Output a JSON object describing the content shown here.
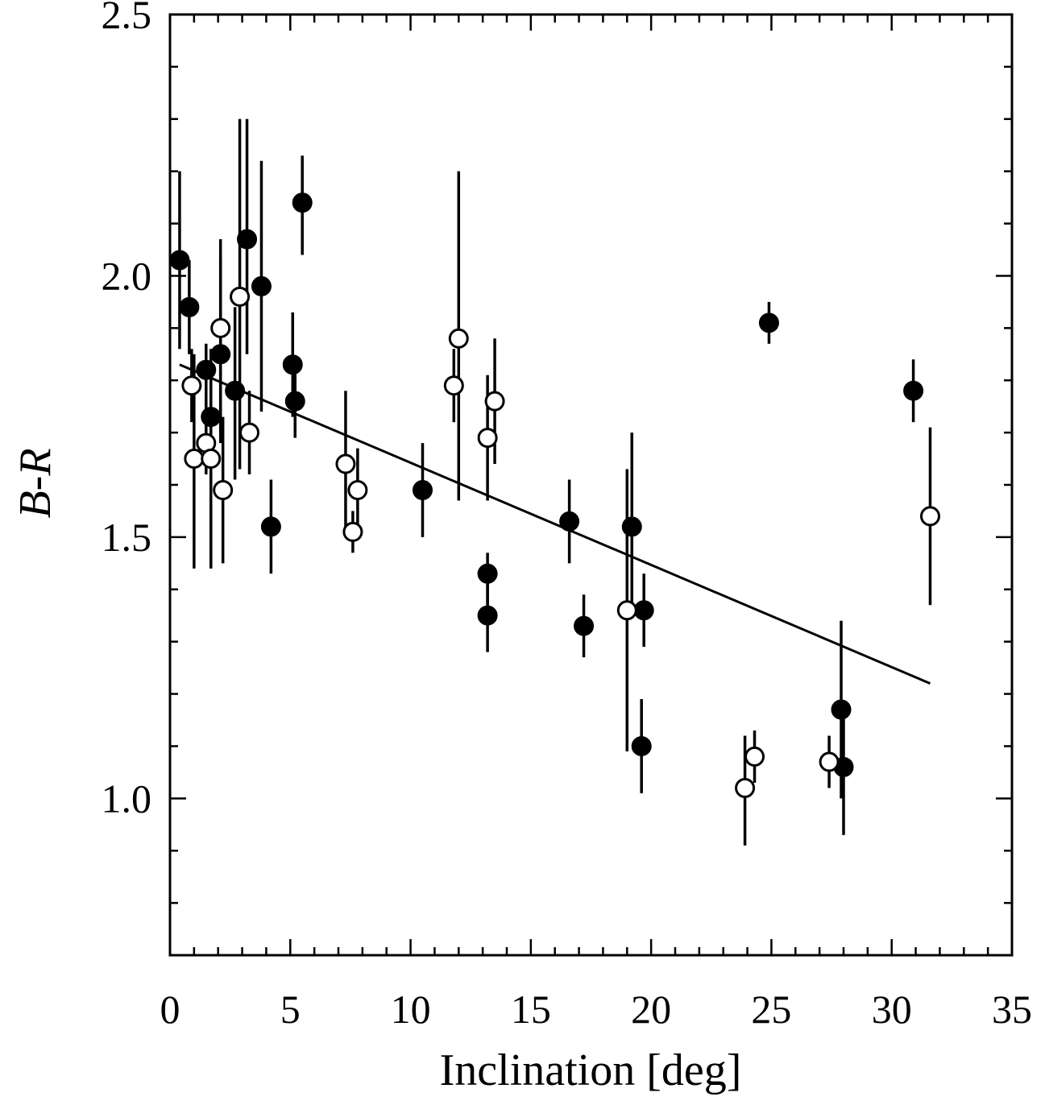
{
  "chart_data": {
    "type": "scatter",
    "xlabel": "Inclination [deg]",
    "ylabel": "B-R",
    "xlim": [
      0,
      35
    ],
    "ylim": [
      0.7,
      2.5
    ],
    "x_ticks": [
      0,
      5,
      10,
      15,
      20,
      25,
      30,
      35
    ],
    "x_tick_labels": [
      "0",
      "5",
      "10",
      "15",
      "20",
      "25",
      "30",
      "35"
    ],
    "y_ticks": [
      1.0,
      1.5,
      2.0,
      2.5
    ],
    "y_tick_labels": [
      "1.0",
      "1.5",
      "2.0",
      "2.5"
    ],
    "grid": false,
    "series": [
      {
        "marker": "filled-circle",
        "color": "#000000",
        "points": [
          {
            "x": 0.4,
            "y": 2.03,
            "ylo": 1.86,
            "yhi": 2.2
          },
          {
            "x": 0.8,
            "y": 1.94,
            "ylo": 1.85,
            "yhi": 2.03
          },
          {
            "x": 1.5,
            "y": 1.82,
            "ylo": 1.74,
            "yhi": 1.87
          },
          {
            "x": 1.7,
            "y": 1.73,
            "ylo": 1.62,
            "yhi": 1.84
          },
          {
            "x": 2.1,
            "y": 1.85,
            "ylo": 1.68,
            "yhi": 2.03
          },
          {
            "x": 2.7,
            "y": 1.78,
            "ylo": 1.61,
            "yhi": 1.94
          },
          {
            "x": 3.2,
            "y": 2.07,
            "ylo": 1.85,
            "yhi": 2.3
          },
          {
            "x": 3.8,
            "y": 1.98,
            "ylo": 1.74,
            "yhi": 2.22
          },
          {
            "x": 4.2,
            "y": 1.52,
            "ylo": 1.43,
            "yhi": 1.61
          },
          {
            "x": 5.1,
            "y": 1.83,
            "ylo": 1.73,
            "yhi": 1.93
          },
          {
            "x": 5.2,
            "y": 1.76,
            "ylo": 1.69,
            "yhi": 1.83
          },
          {
            "x": 5.5,
            "y": 2.14,
            "ylo": 2.04,
            "yhi": 2.23
          },
          {
            "x": 10.5,
            "y": 1.59,
            "ylo": 1.5,
            "yhi": 1.68
          },
          {
            "x": 13.2,
            "y": 1.43,
            "ylo": 1.37,
            "yhi": 1.47
          },
          {
            "x": 13.2,
            "y": 1.35,
            "ylo": 1.28,
            "yhi": 1.42
          },
          {
            "x": 16.6,
            "y": 1.53,
            "ylo": 1.45,
            "yhi": 1.61
          },
          {
            "x": 17.2,
            "y": 1.33,
            "ylo": 1.27,
            "yhi": 1.39
          },
          {
            "x": 19.2,
            "y": 1.52,
            "ylo": 1.35,
            "yhi": 1.7
          },
          {
            "x": 19.6,
            "y": 1.1,
            "ylo": 1.01,
            "yhi": 1.19
          },
          {
            "x": 19.7,
            "y": 1.36,
            "ylo": 1.29,
            "yhi": 1.43
          },
          {
            "x": 24.9,
            "y": 1.91,
            "ylo": 1.87,
            "yhi": 1.95
          },
          {
            "x": 27.9,
            "y": 1.17,
            "ylo": 1.0,
            "yhi": 1.34
          },
          {
            "x": 28.0,
            "y": 1.06,
            "ylo": 0.93,
            "yhi": 1.17
          },
          {
            "x": 30.9,
            "y": 1.78,
            "ylo": 1.72,
            "yhi": 1.84
          }
        ]
      },
      {
        "marker": "open-circle",
        "color": "#000000",
        "points": [
          {
            "x": 0.9,
            "y": 1.79,
            "ylo": 1.72,
            "yhi": 1.86
          },
          {
            "x": 1.0,
            "y": 1.65,
            "ylo": 1.44,
            "yhi": 1.85
          },
          {
            "x": 1.5,
            "y": 1.68,
            "ylo": 1.62,
            "yhi": 1.74
          },
          {
            "x": 1.7,
            "y": 1.65,
            "ylo": 1.44,
            "yhi": 1.86
          },
          {
            "x": 2.1,
            "y": 1.9,
            "ylo": 1.73,
            "yhi": 2.07
          },
          {
            "x": 2.2,
            "y": 1.59,
            "ylo": 1.45,
            "yhi": 1.73
          },
          {
            "x": 2.9,
            "y": 1.96,
            "ylo": 1.63,
            "yhi": 2.3
          },
          {
            "x": 3.3,
            "y": 1.7,
            "ylo": 1.62,
            "yhi": 1.78
          },
          {
            "x": 7.3,
            "y": 1.64,
            "ylo": 1.5,
            "yhi": 1.78
          },
          {
            "x": 7.6,
            "y": 1.51,
            "ylo": 1.47,
            "yhi": 1.55
          },
          {
            "x": 7.8,
            "y": 1.59,
            "ylo": 1.51,
            "yhi": 1.67
          },
          {
            "x": 11.8,
            "y": 1.79,
            "ylo": 1.72,
            "yhi": 1.86
          },
          {
            "x": 12.0,
            "y": 1.88,
            "ylo": 1.57,
            "yhi": 2.2
          },
          {
            "x": 13.2,
            "y": 1.69,
            "ylo": 1.57,
            "yhi": 1.81
          },
          {
            "x": 13.5,
            "y": 1.76,
            "ylo": 1.64,
            "yhi": 1.88
          },
          {
            "x": 19.0,
            "y": 1.36,
            "ylo": 1.09,
            "yhi": 1.63
          },
          {
            "x": 23.9,
            "y": 1.02,
            "ylo": 0.91,
            "yhi": 1.12
          },
          {
            "x": 24.3,
            "y": 1.08,
            "ylo": 1.03,
            "yhi": 1.13
          },
          {
            "x": 27.4,
            "y": 1.07,
            "ylo": 1.02,
            "yhi": 1.12
          },
          {
            "x": 31.6,
            "y": 1.54,
            "ylo": 1.37,
            "yhi": 1.71
          }
        ]
      }
    ],
    "fit_line": {
      "x": [
        0.4,
        31.6
      ],
      "y": [
        1.83,
        1.22
      ]
    }
  }
}
